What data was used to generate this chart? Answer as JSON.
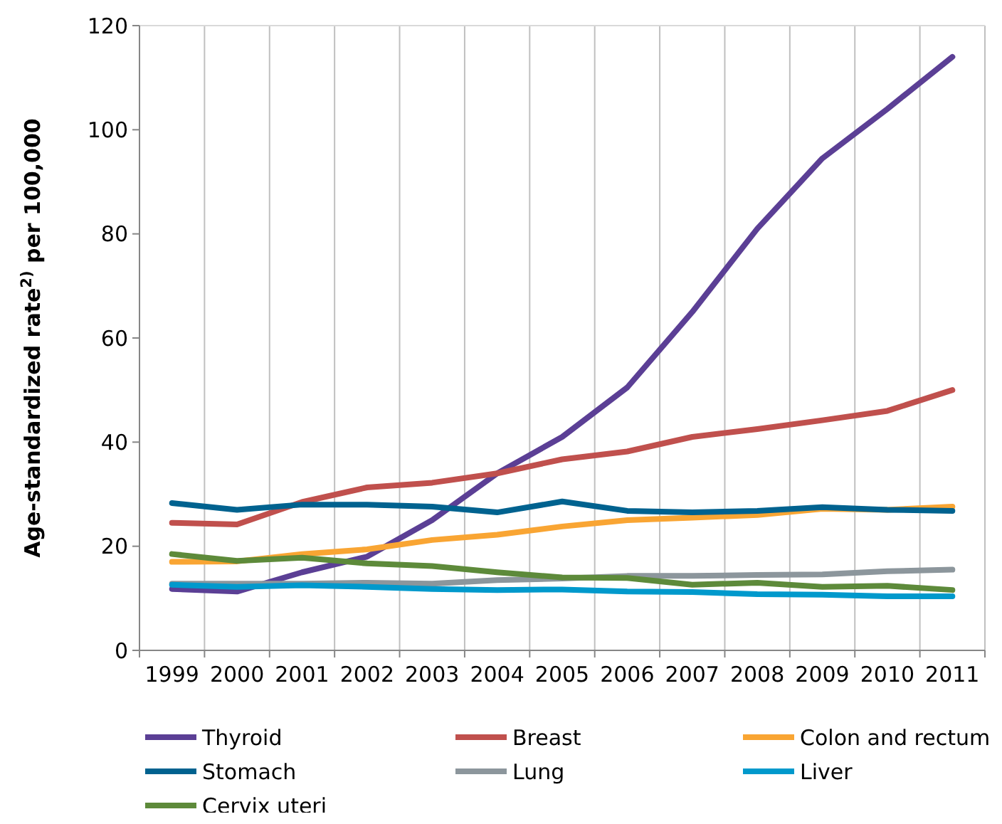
{
  "chart_data": {
    "type": "line",
    "ylabel": "Age-standardized rate$^{2)}$ per 100,000",
    "categories": [
      "1999",
      "2000",
      "2001",
      "2002",
      "2003",
      "2004",
      "2005",
      "2006",
      "2007",
      "2008",
      "2009",
      "2010",
      "2011"
    ],
    "ylim": [
      0,
      120
    ],
    "yticks": [
      0,
      20,
      40,
      60,
      80,
      100,
      120
    ],
    "grid": "x",
    "legend": "bottom",
    "marker": "none",
    "line_style": "solid",
    "series": [
      {
        "name": "Thyroid",
        "color": "#5b3f95",
        "values": [
          11.8,
          11.3,
          15,
          18,
          25,
          34,
          41,
          50.5,
          65,
          81,
          94.5,
          104,
          114
        ]
      },
      {
        "name": "Breast",
        "color": "#c0504d",
        "values": [
          24.5,
          24.2,
          28.5,
          31.3,
          32.2,
          34,
          36.7,
          38.2,
          41,
          42.5,
          44.2,
          46,
          50
        ]
      },
      {
        "name": "Colon and rectum",
        "color": "#f9a533",
        "values": [
          17,
          17.1,
          18.5,
          19.4,
          21.2,
          22.2,
          23.8,
          25,
          25.5,
          26,
          27.2,
          27,
          27.6
        ]
      },
      {
        "name": "Stomach",
        "color": "#00628f",
        "values": [
          28.3,
          27,
          28,
          28,
          27.6,
          26.5,
          28.6,
          26.8,
          26.5,
          26.8,
          27.5,
          27,
          26.8
        ]
      },
      {
        "name": "Lung",
        "color": "#8c969c",
        "values": [
          12.8,
          12.8,
          12.8,
          13,
          12.8,
          13.5,
          13.8,
          14.3,
          14.3,
          14.5,
          14.6,
          15.2,
          15.5
        ]
      },
      {
        "name": "Liver",
        "color": "#0099cc",
        "values": [
          12.6,
          12.2,
          12.5,
          12.2,
          11.8,
          11.6,
          11.7,
          11.3,
          11.2,
          10.8,
          10.7,
          10.4,
          10.4
        ]
      },
      {
        "name": "Cervix uteri",
        "color": "#5d8a3a",
        "values": [
          18.5,
          17.2,
          17.8,
          16.7,
          16.2,
          15,
          14,
          13.9,
          12.6,
          13,
          12.2,
          12.4,
          11.6
        ]
      }
    ]
  }
}
